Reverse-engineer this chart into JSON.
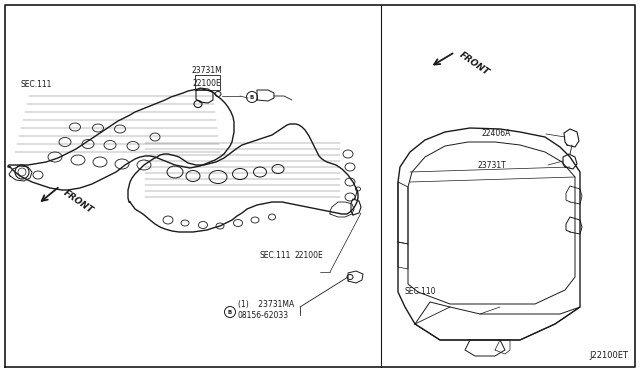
{
  "background_color": "#ffffff",
  "line_color": "#1a1a1a",
  "text_color": "#1a1a1a",
  "fig_width": 6.4,
  "fig_height": 3.72,
  "dpi": 100,
  "labels": {
    "bolt_top_1": "®08156-62033",
    "bolt_top_2": "  (1)    23731MA",
    "sec111_top": "SEC.111",
    "sensor_top": "22100E",
    "sec111_bot": "SEC.111",
    "sensor_bot": "22100E",
    "part_bot": "23731M",
    "bolt_bot_1": "®08156-62033",
    "bolt_bot_2": "  (1)",
    "front_left": "FRONT",
    "sec110": "SEC.110",
    "part_right_top": "23731T",
    "part_right_bot": "22406A",
    "front_right": "FRONT",
    "diagram_id": "J22100ET"
  }
}
